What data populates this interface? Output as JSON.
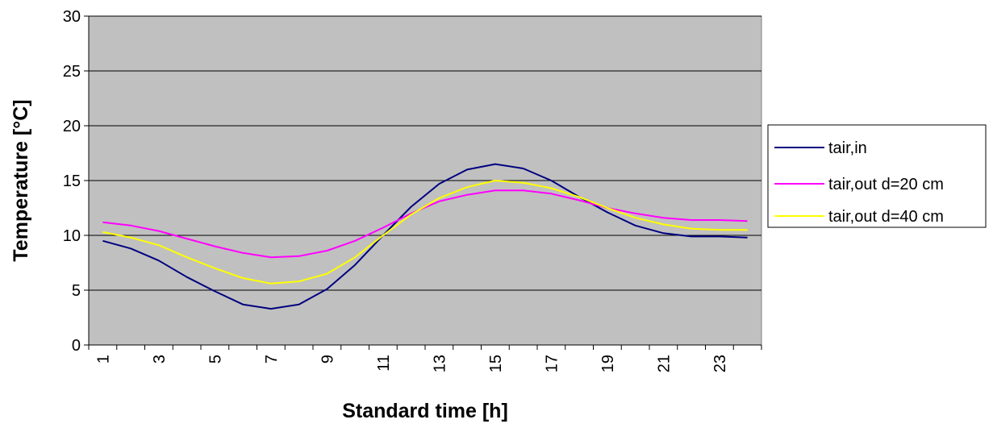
{
  "chart_data": {
    "type": "line",
    "title": "",
    "xlabel": "Standard time [h]",
    "ylabel": "Temperature [°C]",
    "ylim": [
      0,
      30
    ],
    "yticks": [
      0,
      5,
      10,
      15,
      20,
      25,
      30
    ],
    "x": [
      1,
      2,
      3,
      4,
      5,
      6,
      7,
      8,
      9,
      10,
      11,
      12,
      13,
      14,
      15,
      16,
      17,
      18,
      19,
      20,
      21,
      22,
      23,
      24
    ],
    "xtick_labels": [
      "1",
      "3",
      "5",
      "7",
      "9",
      "11",
      "13",
      "15",
      "17",
      "19",
      "21",
      "23"
    ],
    "grid": "horizontal",
    "plot_background": "#c0c0c0",
    "legend_position": "right",
    "series": [
      {
        "name": "tair,in",
        "color": "#000080",
        "values": [
          9.5,
          8.8,
          7.7,
          6.2,
          4.9,
          3.7,
          3.3,
          3.7,
          5.1,
          7.3,
          10.0,
          12.6,
          14.7,
          16.0,
          16.5,
          16.1,
          15.0,
          13.5,
          12.1,
          10.9,
          10.2,
          9.9,
          9.9,
          9.8
        ]
      },
      {
        "name": "tair,out d=20 cm",
        "color": "#ff00ff",
        "values": [
          11.2,
          10.9,
          10.4,
          9.7,
          9.0,
          8.4,
          8.0,
          8.1,
          8.6,
          9.5,
          10.7,
          12.0,
          13.1,
          13.7,
          14.1,
          14.1,
          13.8,
          13.2,
          12.5,
          12.0,
          11.6,
          11.4,
          11.4,
          11.3
        ]
      },
      {
        "name": "tair,out d=40 cm",
        "color": "#ffff00",
        "values": [
          10.3,
          9.8,
          9.1,
          8.0,
          7.0,
          6.1,
          5.6,
          5.8,
          6.5,
          8.0,
          10.0,
          11.9,
          13.4,
          14.4,
          15.0,
          14.8,
          14.3,
          13.5,
          12.5,
          11.6,
          11.0,
          10.6,
          10.5,
          10.5
        ]
      }
    ]
  }
}
